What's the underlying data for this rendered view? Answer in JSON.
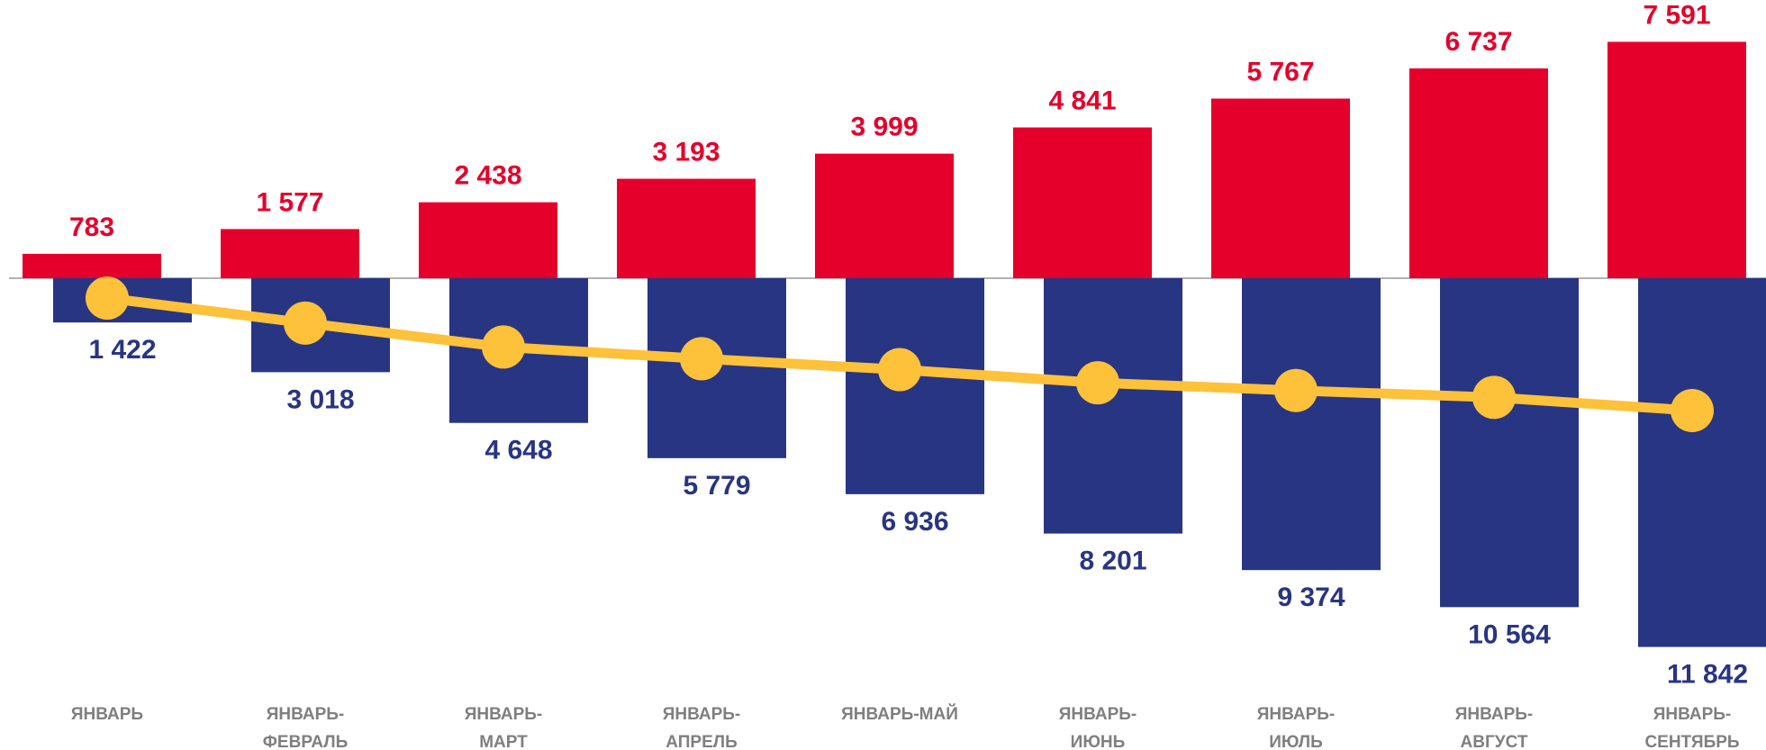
{
  "chart_data": {
    "type": "bar",
    "categories": [
      "ЯНВАРЬ",
      "ЯНВАРЬ-ФЕВРАЛЬ",
      "ЯНВАРЬ-МАРТ",
      "ЯНВАРЬ-АПРЕЛЬ",
      "ЯНВАРЬ-МАЙ",
      "ЯНВАРЬ-ИЮНЬ",
      "ЯНВАРЬ-ИЮЛЬ",
      "ЯНВАРЬ-АВГУСТ",
      "ЯНВАРЬ-СЕНТЯБРЬ"
    ],
    "series": [
      {
        "color": "#e4002b",
        "values": [
          783,
          1577,
          2438,
          3193,
          3999,
          4841,
          5767,
          6737,
          7591
        ],
        "value_labels": [
          "783",
          "1 577",
          "2 438",
          "3 193",
          "3 999",
          "4 841",
          "5 767",
          "6 737",
          "7 591"
        ]
      },
      {
        "color": "#283583",
        "values": [
          -1422,
          -3018,
          -4648,
          -5779,
          -6936,
          -8201,
          -9374,
          -10564,
          -11842
        ],
        "value_labels": [
          "1 422",
          "3 018",
          "4 648",
          "5 779",
          "6 936",
          "8 201",
          "9 374",
          "10 564",
          "11 842"
        ]
      },
      {
        "type": "line",
        "color": "#fdc13a",
        "values": [
          -639,
          -1441,
          -2210,
          -2586,
          -2937,
          -3360,
          -3607,
          -3827,
          -4251
        ]
      }
    ],
    "ylim": [
      -12000,
      8500
    ]
  }
}
